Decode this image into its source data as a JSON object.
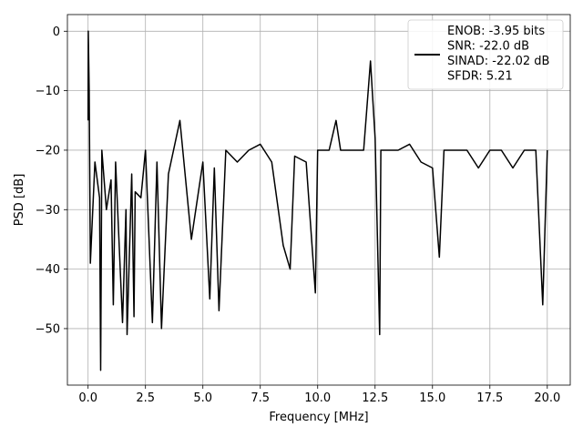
{
  "chart_data": {
    "type": "line",
    "xlabel": "Frequency [MHz]",
    "ylabel": "PSD [dB]",
    "xlim": [
      -0.9,
      21.0
    ],
    "ylim": [
      -59.5,
      2.8
    ],
    "xticks": [
      0.0,
      2.5,
      5.0,
      7.5,
      10.0,
      12.5,
      15.0,
      17.5,
      20.0
    ],
    "xtick_labels": [
      "0.0",
      "2.5",
      "5.0",
      "7.5",
      "10.0",
      "12.5",
      "15.0",
      "17.5",
      "20.0"
    ],
    "yticks": [
      0,
      -10,
      -20,
      -30,
      -40,
      -50
    ],
    "ytick_labels": [
      "0",
      "−10",
      "−20",
      "−30",
      "−40",
      "−50"
    ],
    "grid": true,
    "legend_position": "top-right",
    "series": [
      {
        "name": "ENOB: -3.95 bits\nSNR: -22.0 dB\nSINAD: -22.02 dB\nSFDR: 5.21",
        "color": "#000000",
        "x": [
          0.0,
          0.01,
          0.05,
          0.1,
          0.3,
          0.5,
          0.55,
          0.6,
          0.8,
          1.0,
          1.1,
          1.2,
          1.5,
          1.65,
          1.7,
          1.9,
          2.0,
          2.05,
          2.3,
          2.5,
          2.8,
          3.0,
          3.2,
          3.5,
          4.0,
          4.5,
          5.0,
          5.3,
          5.5,
          5.7,
          6.0,
          6.5,
          7.0,
          7.5,
          8.0,
          8.5,
          8.8,
          9.0,
          9.5,
          9.9,
          10.0,
          10.5,
          10.8,
          11.0,
          11.5,
          12.0,
          12.3,
          12.5,
          12.7,
          12.75,
          13.0,
          13.5,
          14.0,
          14.5,
          15.0,
          15.3,
          15.5,
          16.0,
          16.5,
          17.0,
          17.5,
          18.0,
          18.5,
          19.0,
          19.5,
          19.8,
          20.0
        ],
        "y": [
          -15,
          0,
          -10,
          -39,
          -22,
          -28,
          -57,
          -20,
          -30,
          -25,
          -46,
          -22,
          -49,
          -30,
          -51,
          -24,
          -48,
          -27,
          -28,
          -20,
          -49,
          -22,
          -50,
          -24,
          -15,
          -35,
          -22,
          -45,
          -23,
          -47,
          -20,
          -22,
          -20,
          -19,
          -22,
          -36,
          -40,
          -21,
          -22,
          -44,
          -20,
          -20,
          -15,
          -20,
          -20,
          -20,
          -5,
          -18,
          -51,
          -20,
          -20,
          -20,
          -19,
          -22,
          -23,
          -38,
          -20,
          -20,
          -20,
          -23,
          -20,
          -20,
          -23,
          -20,
          -20,
          -46,
          -20
        ]
      }
    ]
  }
}
